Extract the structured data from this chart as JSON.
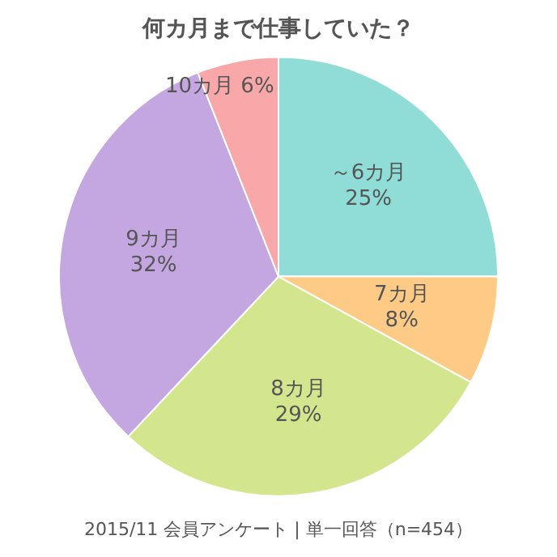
{
  "chart_data": {
    "type": "pie",
    "title": "何カ月まで仕事していた？",
    "categories": [
      "～6カ月",
      "7カ月",
      "8カ月",
      "9カ月",
      "10カ月"
    ],
    "values": [
      25,
      8,
      29,
      32,
      6
    ],
    "value_labels": [
      "25%",
      "8%",
      "29%",
      "32%",
      "6%"
    ],
    "colors": [
      "#8fddd6",
      "#fecb87",
      "#d4e68d",
      "#c4a7e0",
      "#f8a8a8"
    ],
    "annotations": [
      "2015/11 会員アンケート | 単一回答（n=454）"
    ],
    "legend": false
  }
}
